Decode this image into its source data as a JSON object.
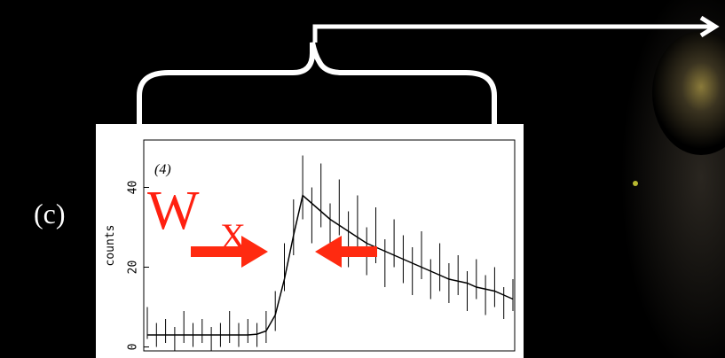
{
  "label": "(c)",
  "chart_data": {
    "type": "errorbar",
    "annotation": "(4)",
    "symbol": "W",
    "symbol_subscript": "X",
    "ylabel": "counts",
    "x": [
      0,
      1,
      2,
      3,
      4,
      5,
      6,
      7,
      8,
      9,
      10,
      11,
      12,
      13,
      14,
      15,
      16,
      17,
      18,
      19,
      20,
      21,
      22,
      23,
      24,
      25,
      26,
      27,
      28,
      29,
      30,
      31,
      32,
      33,
      34,
      35,
      36,
      37,
      38,
      39,
      40
    ],
    "xlim": [
      0,
      40
    ],
    "ylim": [
      -1,
      52
    ],
    "yticks": [
      0,
      20,
      40
    ],
    "series": [
      {
        "color": "#000000",
        "values": [
          6,
          3,
          4,
          2,
          5,
          3,
          4,
          2,
          3,
          5,
          3,
          4,
          3,
          5,
          9,
          20,
          30,
          40,
          33,
          38,
          29,
          35,
          27,
          31,
          24,
          28,
          21,
          26,
          22,
          19,
          23,
          17,
          20,
          16,
          18,
          14,
          17,
          13,
          15,
          11,
          13
        ],
        "errors": [
          4,
          3,
          3,
          3,
          4,
          3,
          3,
          3,
          3,
          4,
          3,
          3,
          3,
          4,
          5,
          6,
          7,
          8,
          7,
          8,
          7,
          7,
          7,
          7,
          6,
          7,
          6,
          6,
          6,
          6,
          6,
          5,
          6,
          5,
          5,
          5,
          5,
          5,
          5,
          4,
          4
        ]
      },
      {
        "color": "#000000",
        "values": [
          3,
          3,
          3,
          3,
          3,
          3,
          3,
          3,
          3,
          3,
          3,
          3,
          3.2,
          4,
          8,
          17,
          28,
          38,
          36,
          34,
          32,
          30.5,
          29,
          27.5,
          26,
          25,
          24,
          23,
          22,
          21,
          20,
          19,
          18,
          17,
          16.5,
          16,
          15,
          14.5,
          14,
          13,
          12
        ]
      }
    ]
  }
}
